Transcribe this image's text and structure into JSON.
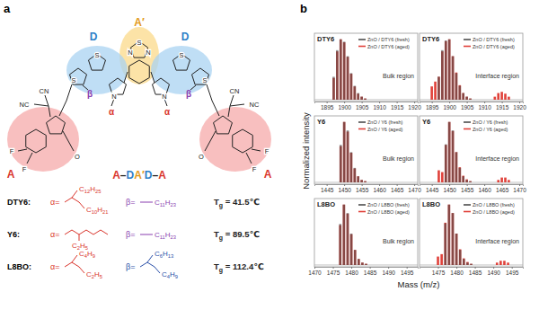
{
  "structure": {
    "panel_label": "a",
    "core_label": "A′",
    "donor_label": "D",
    "acceptor_label": "A",
    "alpha": "α",
    "beta": "β",
    "formula_parts": [
      "A",
      "–",
      "D",
      "A′",
      "D",
      "–",
      "A"
    ],
    "atoms": [
      "N",
      "S",
      "N",
      "S",
      "S",
      "S",
      "S",
      "N",
      "N",
      "O",
      "O",
      "F",
      "F",
      "F",
      "F",
      "NC",
      "CN",
      "CN",
      "NC"
    ],
    "alpha_label": "α=",
    "beta_label": "β=",
    "tg_symbol": "T",
    "tg_subscript": "g",
    "rows": [
      {
        "name": "DTY6:",
        "alpha_groups": [
          "C12H25",
          "C10H21"
        ],
        "beta_groups": [
          "C11H23"
        ],
        "tg": " = 41.5℃"
      },
      {
        "name": "Y6:",
        "alpha_groups": [
          "C2H5"
        ],
        "beta_groups": [
          "C11H23"
        ],
        "tg": " = 89.5℃"
      },
      {
        "name": "L8BO:",
        "alpha_groups": [
          "C4H9",
          "C2H5"
        ],
        "beta_groups": [
          "C6H13",
          "C4H9"
        ],
        "tg": " = 112.4℃"
      }
    ]
  },
  "panel_b": {
    "panel_label": "b",
    "xlabel": "Mass (m/z)",
    "ylabel": "Normalized intensity"
  },
  "chart_data": [
    {
      "type": "bar",
      "title": "DTY6",
      "annotation": "Bulk region",
      "legend": "upper right",
      "tick_labels": "x",
      "x": [
        1895,
        1896,
        1897,
        1898,
        1899,
        1900,
        1901,
        1902,
        1903,
        1904,
        1905,
        1906,
        1913,
        1914,
        1915,
        1916,
        1917
      ],
      "xlim": [
        1891.5,
        1921
      ],
      "xticks": [
        1895,
        1900,
        1905,
        1910,
        1915,
        1920
      ],
      "ylim": [
        -0.03,
        1.1
      ],
      "series": [
        {
          "name": "ZnO / DTY6 (fresh)",
          "color": "#4d4d4d",
          "values": [
            0,
            0,
            0.38,
            0.82,
            1.0,
            0.96,
            0.72,
            0.44,
            0.23,
            0.11,
            0.05,
            0.02,
            0,
            0,
            0,
            0,
            0
          ]
        },
        {
          "name": "ZnO / DTY6 (aged)",
          "color": "#e0413a",
          "values": [
            0,
            0,
            0.36,
            0.8,
            1.0,
            0.95,
            0.71,
            0.43,
            0.22,
            0.1,
            0.05,
            0.02,
            0,
            0,
            0,
            0,
            0
          ]
        }
      ]
    },
    {
      "type": "bar",
      "title": "DTY6",
      "annotation": "Interface region",
      "legend": "upper right",
      "tick_labels": "x",
      "x": [
        1895,
        1896,
        1897,
        1898,
        1899,
        1900,
        1901,
        1902,
        1903,
        1904,
        1905,
        1906,
        1913,
        1914,
        1915,
        1916,
        1917
      ],
      "xlim": [
        1891.5,
        1921
      ],
      "xticks": [
        1895,
        1900,
        1905,
        1910,
        1915,
        1920
      ],
      "ylim": [
        -0.03,
        1.1
      ],
      "series": [
        {
          "name": "ZnO / DTY6 (fresh)",
          "color": "#4d4d4d",
          "values": [
            0,
            0,
            0.38,
            0.82,
            0.98,
            1.0,
            0.72,
            0.44,
            0.23,
            0.11,
            0.05,
            0.02,
            0,
            0,
            0,
            0,
            0
          ]
        },
        {
          "name": "ZnO / DTY6 (aged)",
          "color": "#e0413a",
          "values": [
            0.22,
            0.3,
            0.38,
            0.8,
            0.97,
            1.0,
            0.72,
            0.45,
            0.24,
            0.11,
            0.05,
            0.02,
            0.05,
            0.11,
            0.13,
            0.1,
            0.05
          ]
        }
      ]
    },
    {
      "type": "bar",
      "title": "Y6",
      "annotation": "Bulk region",
      "legend": "upper right",
      "tick_labels": "x",
      "x": [
        1447,
        1448,
        1449,
        1450,
        1451,
        1452,
        1453,
        1454,
        1455,
        1456,
        1464,
        1465,
        1466,
        1467
      ],
      "xlim": [
        1441.5,
        1471
      ],
      "xticks": [
        1445,
        1450,
        1455,
        1460,
        1465,
        1470
      ],
      "ylim": [
        -0.03,
        1.1
      ],
      "series": [
        {
          "name": "ZnO / Y6 (fresh)",
          "color": "#4d4d4d",
          "values": [
            0,
            0,
            0.62,
            1.0,
            0.86,
            0.5,
            0.24,
            0.1,
            0.04,
            0.02,
            0,
            0,
            0,
            0
          ]
        },
        {
          "name": "ZnO / Y6 (aged)",
          "color": "#e0413a",
          "values": [
            0,
            0,
            0.6,
            1.0,
            0.84,
            0.49,
            0.23,
            0.1,
            0.04,
            0.02,
            0,
            0,
            0,
            0
          ]
        }
      ]
    },
    {
      "type": "bar",
      "title": "Y6",
      "annotation": "Interface region",
      "legend": "upper right",
      "tick_labels": "x",
      "x": [
        1447,
        1448,
        1449,
        1450,
        1451,
        1452,
        1453,
        1454,
        1455,
        1456,
        1464,
        1465,
        1466,
        1467
      ],
      "xlim": [
        1441.5,
        1471
      ],
      "xticks": [
        1445,
        1450,
        1455,
        1460,
        1465,
        1470
      ],
      "ylim": [
        -0.03,
        1.1
      ],
      "series": [
        {
          "name": "ZnO / Y6 (fresh)",
          "color": "#4d4d4d",
          "values": [
            0,
            0,
            0.63,
            1.0,
            0.86,
            0.5,
            0.24,
            0.1,
            0.04,
            0.02,
            0,
            0,
            0,
            0
          ]
        },
        {
          "name": "ZnO / Y6 (aged)",
          "color": "#e0413a",
          "values": [
            0.2,
            0.17,
            0.62,
            1.0,
            0.85,
            0.5,
            0.25,
            0.11,
            0.05,
            0.02,
            0.04,
            0.08,
            0.08,
            0.04
          ]
        }
      ]
    },
    {
      "type": "bar",
      "title": "L8BO",
      "annotation": "Bulk region",
      "legend": "upper right",
      "tick_labels": "x",
      "x": [
        1475,
        1476,
        1477,
        1478,
        1479,
        1480,
        1481,
        1482,
        1483,
        1484,
        1491,
        1492,
        1493,
        1494
      ],
      "xlim": [
        1470,
        1498
      ],
      "xticks": [
        1470,
        1475,
        1480,
        1485,
        1490,
        1495
      ],
      "ylim": [
        -0.03,
        1.1
      ],
      "series": [
        {
          "name": "ZnO / L8BO (fresh)",
          "color": "#4d4d4d",
          "values": [
            0,
            0,
            0.68,
            1.0,
            0.86,
            0.52,
            0.25,
            0.1,
            0.04,
            0.02,
            0,
            0,
            0,
            0
          ]
        },
        {
          "name": "ZnO / L8BO (aged)",
          "color": "#e0413a",
          "values": [
            0,
            0,
            0.66,
            1.0,
            0.85,
            0.51,
            0.25,
            0.1,
            0.04,
            0.02,
            0,
            0,
            0,
            0
          ]
        }
      ]
    },
    {
      "type": "bar",
      "title": "L8BO",
      "annotation": "Interface region",
      "legend": "upper right",
      "tick_labels": "x",
      "x": [
        1475,
        1476,
        1477,
        1478,
        1479,
        1480,
        1481,
        1482,
        1483,
        1484,
        1491,
        1492,
        1493,
        1494
      ],
      "xlim": [
        1470,
        1498
      ],
      "xticks": [
        1475,
        1480,
        1485,
        1490,
        1495
      ],
      "ylim": [
        -0.03,
        1.1
      ],
      "series": [
        {
          "name": "ZnO / L8BO (fresh)",
          "color": "#4d4d4d",
          "values": [
            0,
            0,
            0.69,
            1.0,
            0.86,
            0.52,
            0.25,
            0.1,
            0.04,
            0.02,
            0,
            0,
            0,
            0
          ]
        },
        {
          "name": "ZnO / L8BO (aged)",
          "color": "#e0413a",
          "values": [
            0.14,
            0.18,
            0.7,
            1.0,
            0.86,
            0.52,
            0.26,
            0.11,
            0.05,
            0.02,
            0.04,
            0.07,
            0.07,
            0.04
          ]
        }
      ]
    }
  ]
}
